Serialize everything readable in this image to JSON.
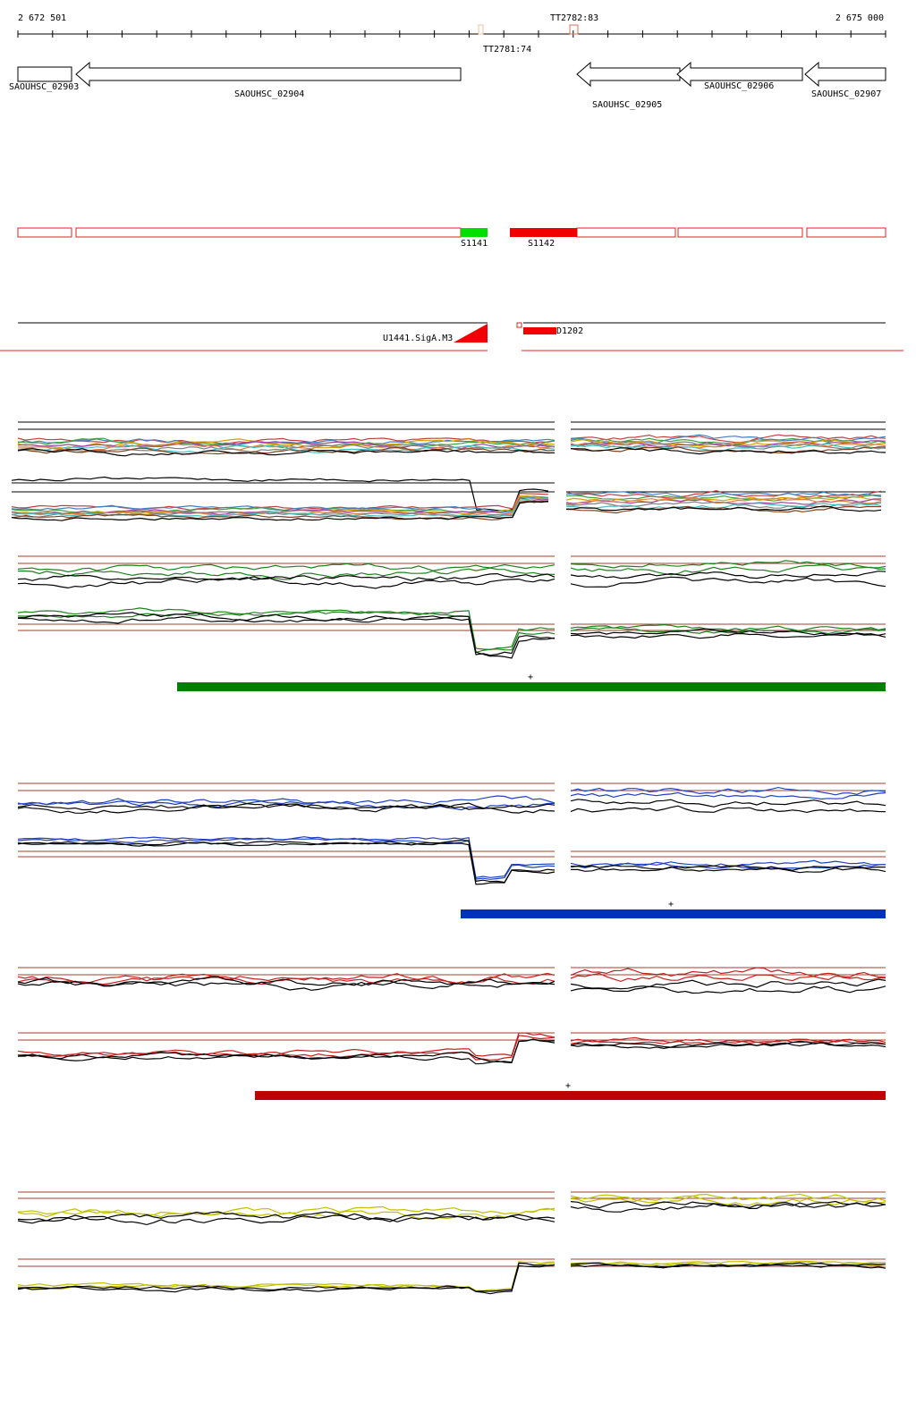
{
  "ruler": {
    "start": "2 672 501",
    "end": "2 675 000"
  },
  "terminators": [
    "TT2782:83",
    "TT2781:74"
  ],
  "genes": [
    "SAOUHSC_02903",
    "SAOUHSC_02904",
    "SAOUHSC_02905",
    "SAOUHSC_02906",
    "SAOUHSC_02907"
  ],
  "segments": [
    "S1141",
    "S1142"
  ],
  "promoter": "U1441.SigA.M3",
  "downstream": "D1202",
  "strands": [
    "+",
    "+",
    "+"
  ]
}
